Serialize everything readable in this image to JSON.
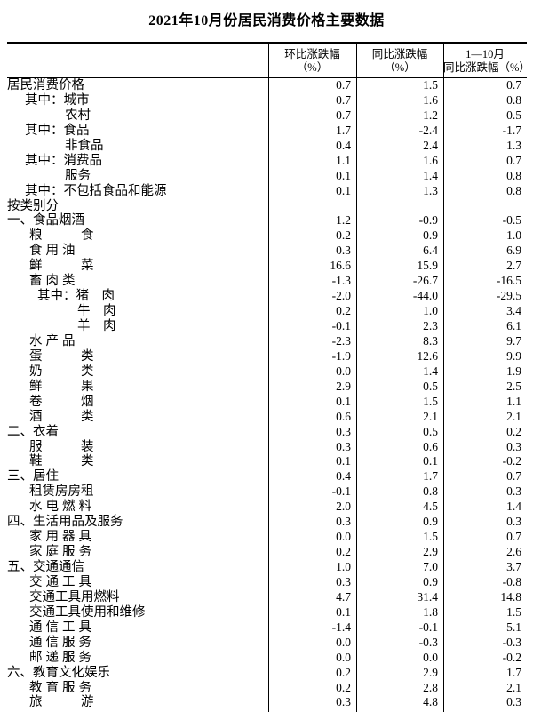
{
  "title": "2021年10月份居民消费价格主要数据",
  "table": {
    "header": [
      {
        "line1": "环比涨跌幅",
        "line2": "（%）"
      },
      {
        "line1": "同比涨跌幅",
        "line2": "（%）"
      },
      {
        "line1": "1—10月",
        "line2": "同比涨跌幅（%）"
      }
    ],
    "rows": [
      {
        "label": "居民消费价格",
        "level": "top",
        "mom": "0.7",
        "yoy": "1.5",
        "ytd": "0.7"
      },
      {
        "label": "其中：城市",
        "level": "qz",
        "mom": "0.7",
        "yoy": "1.6",
        "ytd": "0.8"
      },
      {
        "label": "农村",
        "level": "sub",
        "mom": "0.7",
        "yoy": "1.2",
        "ytd": "0.5"
      },
      {
        "label": "其中：食品",
        "level": "qz",
        "mom": "1.7",
        "yoy": "-2.4",
        "ytd": "-1.7"
      },
      {
        "label": "非食品",
        "level": "sub",
        "mom": "0.4",
        "yoy": "2.4",
        "ytd": "1.3"
      },
      {
        "label": "其中：消费品",
        "level": "qz",
        "mom": "1.1",
        "yoy": "1.6",
        "ytd": "0.7"
      },
      {
        "label": "服务",
        "level": "sub",
        "mom": "0.1",
        "yoy": "1.4",
        "ytd": "0.8"
      },
      {
        "label": "其中：不包括食品和能源",
        "level": "qz",
        "mom": "0.1",
        "yoy": "1.3",
        "ytd": "0.8"
      },
      {
        "label": "按类别分",
        "level": "top",
        "mom": "",
        "yoy": "",
        "ytd": ""
      },
      {
        "label": "一、食品烟酒",
        "level": "top",
        "mom": "1.2",
        "yoy": "-0.9",
        "ytd": "-0.5"
      },
      {
        "label": "粮　　　食",
        "level": "item",
        "mom": "0.2",
        "yoy": "0.9",
        "ytd": "1.0"
      },
      {
        "label": "食用油",
        "level": "item",
        "mom": "0.3",
        "yoy": "6.4",
        "ytd": "6.9"
      },
      {
        "label": "鲜　　　菜",
        "level": "item",
        "mom": "16.6",
        "yoy": "15.9",
        "ytd": "2.7"
      },
      {
        "label": "畜肉类",
        "level": "item",
        "mom": "-1.3",
        "yoy": "-26.7",
        "ytd": "-16.5"
      },
      {
        "label": "其中：猪　肉",
        "level": "qz2",
        "mom": "-2.0",
        "yoy": "-44.0",
        "ytd": "-29.5"
      },
      {
        "label": "牛　肉",
        "level": "sub2",
        "mom": "0.2",
        "yoy": "1.0",
        "ytd": "3.4"
      },
      {
        "label": "羊　肉",
        "level": "sub2",
        "mom": "-0.1",
        "yoy": "2.3",
        "ytd": "6.1"
      },
      {
        "label": "水产品",
        "level": "item",
        "mom": "-2.3",
        "yoy": "8.3",
        "ytd": "9.7"
      },
      {
        "label": "蛋　　　类",
        "level": "item",
        "mom": "-1.9",
        "yoy": "12.6",
        "ytd": "9.9"
      },
      {
        "label": "奶　　　类",
        "level": "item",
        "mom": "0.0",
        "yoy": "1.4",
        "ytd": "1.9"
      },
      {
        "label": "鲜　　　果",
        "level": "item",
        "mom": "2.9",
        "yoy": "0.5",
        "ytd": "2.5"
      },
      {
        "label": "卷　　　烟",
        "level": "item",
        "mom": "0.1",
        "yoy": "1.5",
        "ytd": "1.1"
      },
      {
        "label": "酒　　　类",
        "level": "item",
        "mom": "0.6",
        "yoy": "2.1",
        "ytd": "2.1"
      },
      {
        "label": "二、衣着",
        "level": "top",
        "mom": "0.3",
        "yoy": "0.5",
        "ytd": "0.2"
      },
      {
        "label": "服　　　装",
        "level": "item",
        "mom": "0.3",
        "yoy": "0.6",
        "ytd": "0.3"
      },
      {
        "label": "鞋　　　类",
        "level": "item",
        "mom": "0.1",
        "yoy": "0.1",
        "ytd": "-0.2"
      },
      {
        "label": "三、居住",
        "level": "top",
        "mom": "0.4",
        "yoy": "1.7",
        "ytd": "0.7"
      },
      {
        "label": "租赁房房租",
        "level": "item",
        "mom": "-0.1",
        "yoy": "0.8",
        "ytd": "0.3"
      },
      {
        "label": "水电燃料",
        "level": "item",
        "mom": "2.0",
        "yoy": "4.5",
        "ytd": "1.4"
      },
      {
        "label": "四、生活用品及服务",
        "level": "top",
        "mom": "0.3",
        "yoy": "0.9",
        "ytd": "0.3"
      },
      {
        "label": "家用器具",
        "level": "item",
        "mom": "0.0",
        "yoy": "1.5",
        "ytd": "0.7"
      },
      {
        "label": "家庭服务",
        "level": "item",
        "mom": "0.2",
        "yoy": "2.9",
        "ytd": "2.6"
      },
      {
        "label": "五、交通通信",
        "level": "top",
        "mom": "1.0",
        "yoy": "7.0",
        "ytd": "3.7"
      },
      {
        "label": "交通工具",
        "level": "item",
        "mom": "0.3",
        "yoy": "0.9",
        "ytd": "-0.8"
      },
      {
        "label": "交通工具用燃料",
        "level": "item",
        "mom": "4.7",
        "yoy": "31.4",
        "ytd": "14.8"
      },
      {
        "label": "交通工具使用和维修",
        "level": "item",
        "mom": "0.1",
        "yoy": "1.8",
        "ytd": "1.5"
      },
      {
        "label": "通信工具",
        "level": "item",
        "mom": "-1.4",
        "yoy": "-0.1",
        "ytd": "5.1"
      },
      {
        "label": "通信服务",
        "level": "item",
        "mom": "0.0",
        "yoy": "-0.3",
        "ytd": "-0.3"
      },
      {
        "label": "邮递服务",
        "level": "item",
        "mom": "0.0",
        "yoy": "0.0",
        "ytd": "-0.2"
      },
      {
        "label": "六、教育文化娱乐",
        "level": "top",
        "mom": "0.2",
        "yoy": "2.9",
        "ytd": "1.7"
      },
      {
        "label": "教育服务",
        "level": "item",
        "mom": "0.2",
        "yoy": "2.8",
        "ytd": "2.1"
      },
      {
        "label": "旅　　　游",
        "level": "item",
        "mom": "0.3",
        "yoy": "4.8",
        "ytd": "0.3"
      }
    ]
  }
}
